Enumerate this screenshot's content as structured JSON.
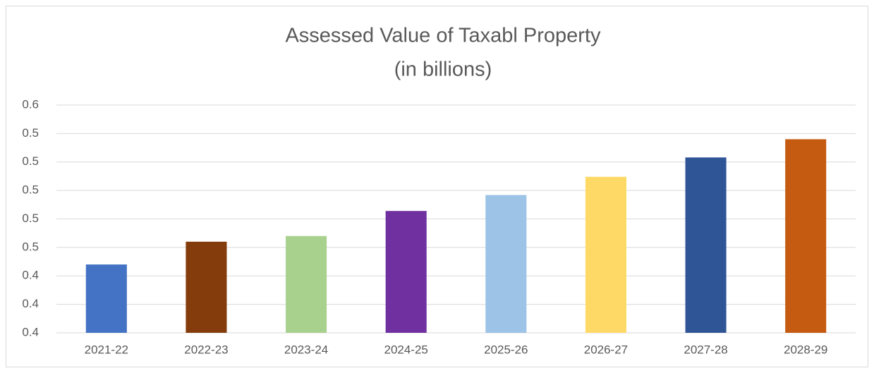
{
  "chart_data": {
    "type": "bar",
    "title": "Assessed Value of Taxabl Property",
    "subtitle": "(in billions)",
    "categories": [
      "2021-22",
      "2022-23",
      "2023-24",
      "2024-25",
      "2025-26",
      "2026-27",
      "2027-28",
      "2028-29"
    ],
    "values": [
      0.46,
      0.48,
      0.485,
      0.507,
      0.521,
      0.537,
      0.554,
      0.57
    ],
    "colors": [
      "#4472c4",
      "#843c0c",
      "#a9d18e",
      "#7030a0",
      "#9dc3e6",
      "#ffd966",
      "#2f5597",
      "#c55a11"
    ],
    "ylim": [
      0.4,
      0.6
    ],
    "yticks": [
      {
        "value": 0.4,
        "label": "0.4"
      },
      {
        "value": 0.425,
        "label": "0.4"
      },
      {
        "value": 0.45,
        "label": "0.4"
      },
      {
        "value": 0.475,
        "label": "0.5"
      },
      {
        "value": 0.5,
        "label": "0.5"
      },
      {
        "value": 0.525,
        "label": "0.5"
      },
      {
        "value": 0.55,
        "label": "0.5"
      },
      {
        "value": 0.575,
        "label": "0.5"
      },
      {
        "value": 0.6,
        "label": "0.6"
      }
    ],
    "grid": true
  }
}
